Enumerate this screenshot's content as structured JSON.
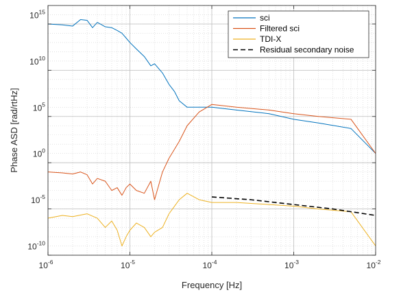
{
  "chart_data": {
    "type": "line",
    "title": "",
    "xlabel": "Frequency [Hz]",
    "ylabel": "Phase ASD [rad/rtHz]",
    "xscale": "log",
    "yscale": "log",
    "xlim": [
      1e-06,
      0.01
    ],
    "ylim": [
      1e-11,
      1e+16
    ],
    "grid": true,
    "legend_position": "top-right",
    "x_ticks": [
      {
        "base": "10",
        "exp": "-6"
      },
      {
        "base": "10",
        "exp": "-5"
      },
      {
        "base": "10",
        "exp": "-4"
      },
      {
        "base": "10",
        "exp": "-3"
      },
      {
        "base": "10",
        "exp": "-2"
      }
    ],
    "y_ticks": [
      {
        "base": "10",
        "exp": "-10"
      },
      {
        "base": "10",
        "exp": "-5"
      },
      {
        "base": "10",
        "exp": "0"
      },
      {
        "base": "10",
        "exp": "5"
      },
      {
        "base": "10",
        "exp": "10"
      },
      {
        "base": "10",
        "exp": "15"
      }
    ],
    "series": [
      {
        "name": "sci",
        "color": "#0072BD",
        "style": "solid",
        "points": [
          [
            1e-06,
            100000000000000.0
          ],
          [
            1.5e-06,
            80000000000000.0
          ],
          [
            2e-06,
            60000000000000.0
          ],
          [
            2.5e-06,
            300000000000000.0
          ],
          [
            3e-06,
            250000000000000.0
          ],
          [
            3.5e-06,
            40000000000000.0
          ],
          [
            4e-06,
            150000000000000.0
          ],
          [
            5e-06,
            50000000000000.0
          ],
          [
            6e-06,
            40000000000000.0
          ],
          [
            7e-06,
            20000000000000.0
          ],
          [
            8e-06,
            10000000000000.0
          ],
          [
            9e-06,
            3000000000000.0
          ],
          [
            1e-05,
            1000000000000.0
          ],
          [
            1.2e-05,
            200000000000.0
          ],
          [
            1.5e-05,
            30000000000.0
          ],
          [
            1.8e-05,
            3000000000.0
          ],
          [
            2e-05,
            5000000000.0
          ],
          [
            2.5e-05,
            500000000.0
          ],
          [
            3e-05,
            30000000.0
          ],
          [
            3.5e-05,
            5000000.0
          ],
          [
            4e-05,
            500000.0
          ],
          [
            5e-05,
            100000.0
          ],
          [
            7e-05,
            100000.0
          ],
          [
            0.0001,
            100000.0
          ],
          [
            0.0002,
            50000.0
          ],
          [
            0.0005,
            20000.0
          ],
          [
            0.001,
            5000.0
          ],
          [
            0.002,
            2000.0
          ],
          [
            0.005,
            500
          ],
          [
            0.01,
            1
          ]
        ]
      },
      {
        "name": "Filtered sci",
        "color": "#D95319",
        "style": "solid",
        "points": [
          [
            1e-06,
            0.01
          ],
          [
            1.5e-06,
            0.008
          ],
          [
            2e-06,
            0.006
          ],
          [
            2.5e-06,
            0.01
          ],
          [
            3e-06,
            0.005
          ],
          [
            3.5e-06,
            0.0005
          ],
          [
            4e-06,
            0.002
          ],
          [
            5e-06,
            0.001
          ],
          [
            6e-06,
            0.0001
          ],
          [
            7e-06,
            0.0002
          ],
          [
            8e-06,
            3e-05
          ],
          [
            9e-06,
            0.0002
          ],
          [
            1e-05,
            0.0005
          ],
          [
            1.2e-05,
            0.0001
          ],
          [
            1.5e-05,
            5e-05
          ],
          [
            1.8e-05,
            0.001
          ],
          [
            2e-05,
            1e-05
          ],
          [
            2.5e-05,
            0.01
          ],
          [
            3e-05,
            0.3
          ],
          [
            4e-05,
            20
          ],
          [
            5e-05,
            1000
          ],
          [
            7e-05,
            30000.0
          ],
          [
            0.0001,
            200000.0
          ],
          [
            0.0002,
            100000.0
          ],
          [
            0.0005,
            50000.0
          ],
          [
            0.001,
            20000.0
          ],
          [
            0.002,
            10000.0
          ],
          [
            0.005,
            5000.0
          ],
          [
            0.01,
            1
          ]
        ]
      },
      {
        "name": "TDI-X",
        "color": "#EDB120",
        "style": "solid",
        "points": [
          [
            1e-06,
            1e-07
          ],
          [
            1.5e-06,
            2e-07
          ],
          [
            2e-06,
            1.5e-07
          ],
          [
            3e-06,
            3e-07
          ],
          [
            4e-06,
            1e-07
          ],
          [
            5e-06,
            1e-08
          ],
          [
            6e-06,
            5e-08
          ],
          [
            7e-06,
            5e-09
          ],
          [
            8e-06,
            1e-10
          ],
          [
            9e-06,
            1e-09
          ],
          [
            1e-05,
            5e-09
          ],
          [
            1.2e-05,
            3e-08
          ],
          [
            1.5e-05,
            1e-08
          ],
          [
            1.8e-05,
            1e-09
          ],
          [
            2e-05,
            3e-09
          ],
          [
            2.5e-05,
            1e-08
          ],
          [
            3e-05,
            3e-07
          ],
          [
            4e-05,
            1e-05
          ],
          [
            5e-05,
            5e-05
          ],
          [
            7e-05,
            1e-05
          ],
          [
            0.0001,
            5e-06
          ],
          [
            0.0002,
            5e-06
          ],
          [
            0.0005,
            3e-06
          ],
          [
            0.001,
            2e-06
          ],
          [
            0.002,
            1e-06
          ],
          [
            0.005,
            5e-07
          ],
          [
            0.01,
            1e-10
          ]
        ]
      },
      {
        "name": "Residual secondary noise",
        "color": "#000000",
        "style": "dashed",
        "points": [
          [
            0.0001,
            2e-05
          ],
          [
            0.0003,
            1e-05
          ],
          [
            0.001,
            3e-06
          ],
          [
            0.003,
            1e-06
          ],
          [
            0.01,
            2e-07
          ]
        ]
      }
    ]
  }
}
